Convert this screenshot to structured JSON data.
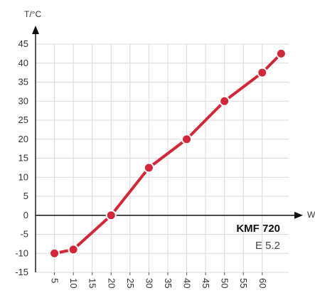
{
  "chart_data": {
    "type": "line",
    "ylabel": "T/°C",
    "xlabel": "W",
    "x": [
      5,
      10,
      20,
      30,
      40,
      50,
      60,
      65
    ],
    "xticks": [
      "5",
      "10",
      "15",
      "20",
      "25",
      "30",
      "35",
      "40",
      "45",
      "50",
      "55",
      "60"
    ],
    "xtick_values": [
      5,
      10,
      15,
      20,
      25,
      30,
      35,
      40,
      45,
      50,
      55,
      60
    ],
    "yticks": [
      -15,
      -10,
      -5,
      0,
      5,
      10,
      15,
      20,
      25,
      30,
      35,
      40,
      45
    ],
    "xlim": [
      0,
      67
    ],
    "ylim": [
      -15,
      45
    ],
    "grid": true,
    "series": [
      {
        "values": [
          -10,
          -9,
          0,
          12.5,
          20,
          30,
          37.5,
          42.5
        ],
        "color": "#d42638"
      }
    ],
    "annotations": {
      "model": "KMF 720",
      "variant": "E 5.2"
    }
  }
}
